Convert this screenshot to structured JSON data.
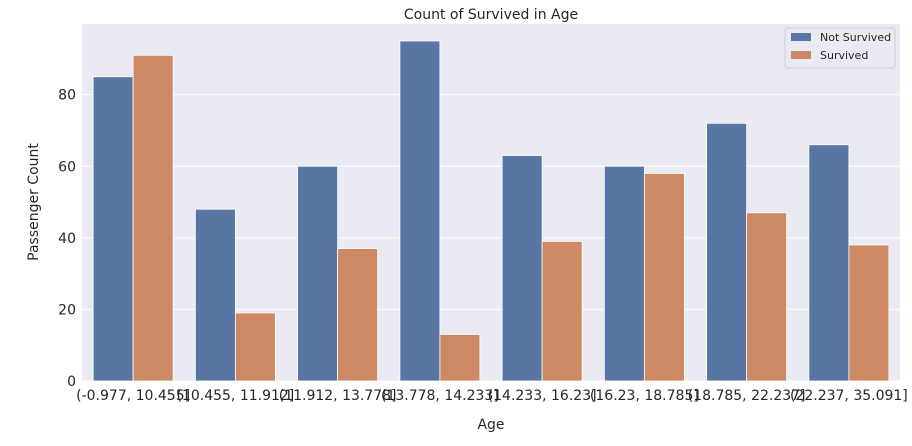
{
  "chart_data": {
    "type": "bar",
    "title": "Count of Survived in Age",
    "xlabel": "Age",
    "ylabel": "Passenger Count",
    "categories": [
      "(-0.977, 10.455]",
      "(10.455, 11.912]",
      "(11.912, 13.778]",
      "(13.778, 14.233]",
      "(14.233, 16.23]",
      "(16.23, 18.785]",
      "(18.785, 22.237]",
      "(22.237, 35.091]"
    ],
    "series": [
      {
        "name": "Not Survived",
        "color": "#5875a4",
        "values": [
          85,
          48,
          60,
          95,
          63,
          60,
          72,
          66
        ]
      },
      {
        "name": "Survived",
        "color": "#cc8963",
        "values": [
          91,
          19,
          37,
          13,
          39,
          58,
          47,
          38
        ]
      }
    ],
    "ylim": [
      0,
      99.75
    ],
    "yticks": [
      0,
      20,
      40,
      60,
      80
    ],
    "grid": true,
    "legend_position": "top-right"
  }
}
